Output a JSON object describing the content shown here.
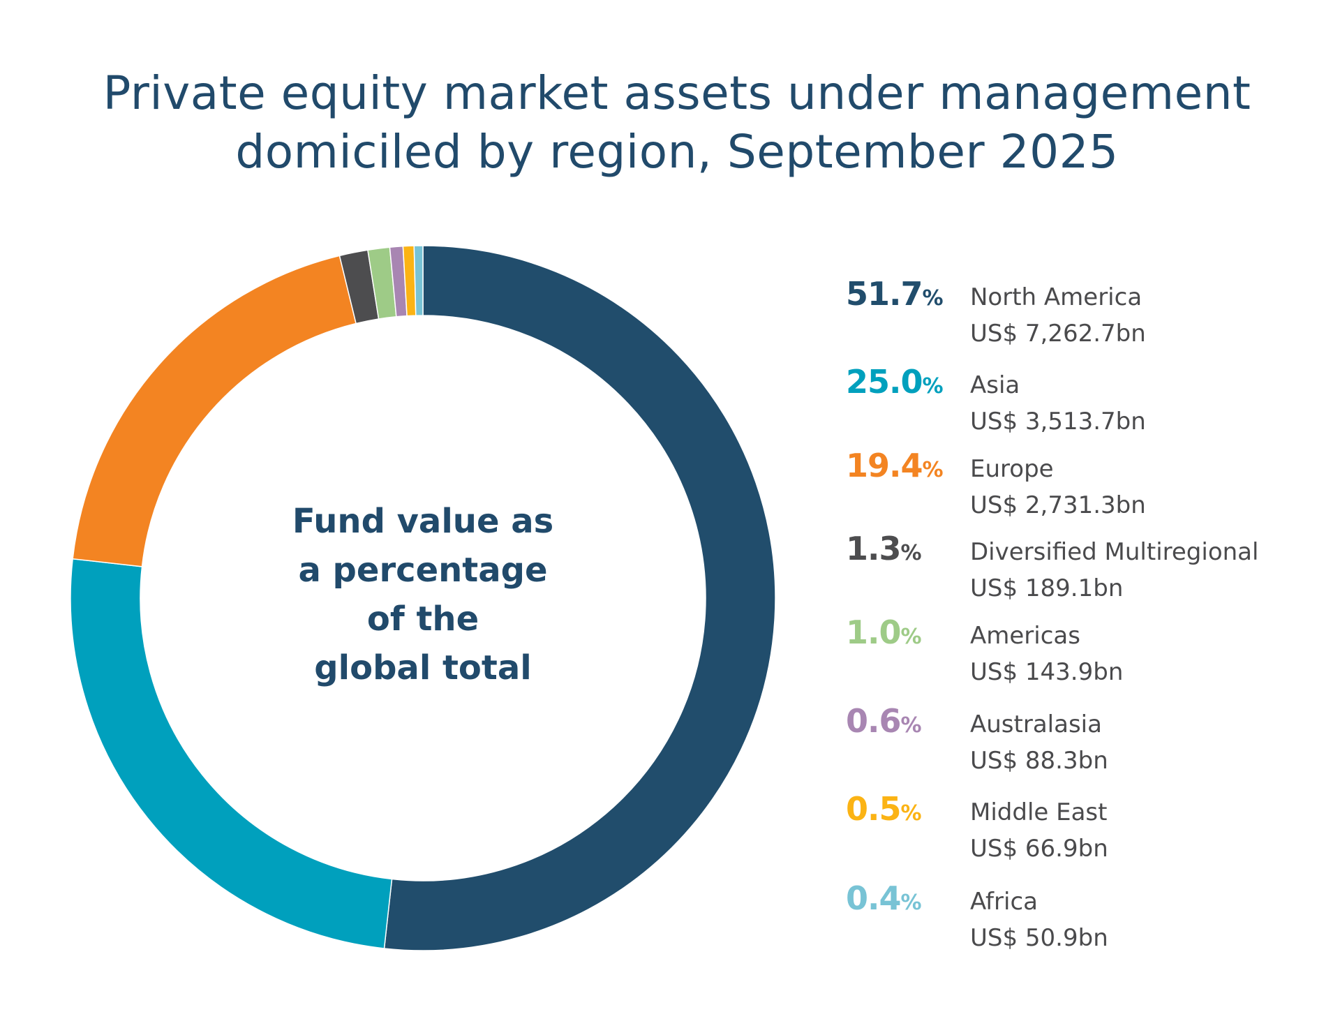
{
  "title_line1": "Private equity market assets under management",
  "title_line2": "domiciled by region, September 2025",
  "center_label": [
    "Fund value as",
    "a percentage",
    "of the",
    "global total"
  ],
  "percent_sign": "%",
  "chart_data": {
    "type": "pie",
    "variant": "donut",
    "title": "Private equity market assets under management domiciled by region, September 2025",
    "start": "top, clockwise",
    "legend_placement": "right",
    "series": [
      {
        "name": "North America",
        "percent": "51.7",
        "value": 51.7,
        "amount": "US$ 7,262.7bn",
        "color": "#214d6c"
      },
      {
        "name": "Asia",
        "percent": "25.0",
        "value": 25.0,
        "amount": "US$ 3,513.7bn",
        "color": "#00a0bd"
      },
      {
        "name": "Europe",
        "percent": "19.4",
        "value": 19.4,
        "amount": "US$ 2,731.3bn",
        "color": "#f38422"
      },
      {
        "name": "Diversified Multiregional",
        "percent": "1.3",
        "value": 1.3,
        "amount": "US$ 189.1bn",
        "color": "#4d4d4f"
      },
      {
        "name": "Americas",
        "percent": "1.0",
        "value": 1.0,
        "amount": "US$ 143.9bn",
        "color": "#9ecb87"
      },
      {
        "name": "Australasia",
        "percent": "0.6",
        "value": 0.6,
        "amount": "US$ 88.3bn",
        "color": "#a886b2"
      },
      {
        "name": "Middle East",
        "percent": "0.5",
        "value": 0.5,
        "amount": "US$ 66.9bn",
        "color": "#fbb314"
      },
      {
        "name": "Africa",
        "percent": "0.4",
        "value": 0.4,
        "amount": "US$ 50.9bn",
        "color": "#78c3d5"
      }
    ]
  }
}
